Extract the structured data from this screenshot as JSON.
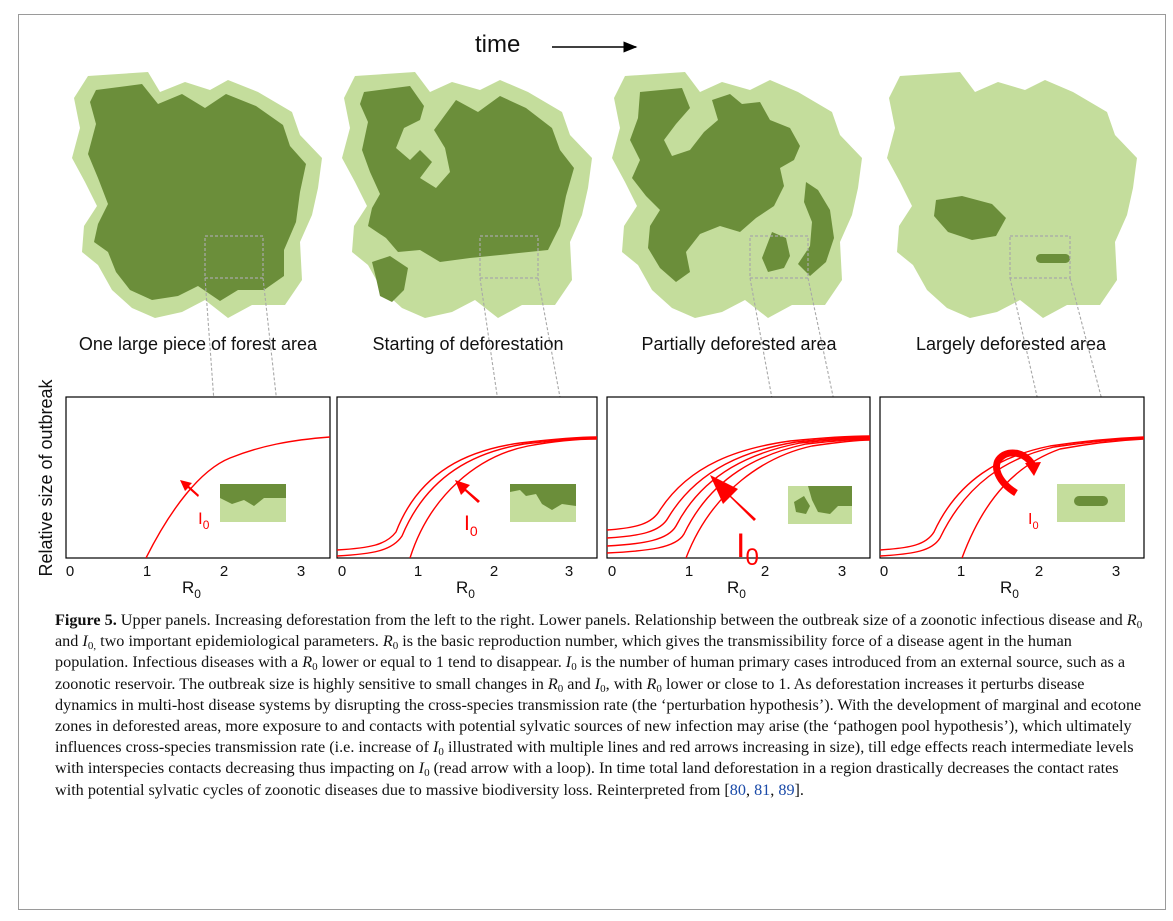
{
  "figure": {
    "time_label": "time",
    "panels": [
      {
        "title": "One large piece of forest area"
      },
      {
        "title": "Starting of deforestation"
      },
      {
        "title": "Partially deforested area"
      },
      {
        "title": "Largely deforested area"
      }
    ],
    "y_axis_label": "Relative size of outbreak",
    "x_axis_label": "R",
    "x_axis_subscript": "0",
    "x_ticks": [
      "0",
      "1",
      "2",
      "3"
    ],
    "arrow_label": "I",
    "arrow_label_subscript": "0",
    "colors": {
      "forest_dark": "#6b8e3a",
      "forest_light": "#c4dd9c",
      "curve": "#ff0000",
      "zoom_box": "#a8a8a8"
    }
  },
  "caption": {
    "figure_label": "Figure 5.",
    "segments": [
      " Upper panels. Increasing deforestation from the left to the right. Lower panels. Relationship between the outbreak size of a zoonotic infectious disease and ",
      " and ",
      " two important epidemiological parameters. ",
      " is the basic reproduction number, which gives the transmissibility force of a disease agent in the human population. Infectious diseases with a ",
      " lower or equal to 1 tend to disappear. ",
      " is the number of human primary cases introduced from an external source, such as a zoonotic reservoir. The outbreak size is highly sensitive to small changes in ",
      " and ",
      ", with ",
      " lower or close to 1. As deforestation increases it perturbs disease dynamics in multi-host disease systems by disrupting the cross-species transmission rate (the ‘perturbation hypothesis’). With the development of marginal and ecotone zones in deforested areas, more exposure to and contacts with potential sylvatic sources of new infection may arise (the ‘pathogen pool hypothesis’), which ultimately influences cross-species transmission rate (i.e. increase of ",
      " illustrated with multiple lines and red arrows increasing in size), till edge effects reach intermediate levels with interspecies contacts decreasing thus impacting on ",
      " (read arrow with a loop). In time total land deforestation in a region drastically decreases the contact rates with potential sylvatic cycles of zoonotic diseases due to massive biodiversity loss. Reinterpreted from [",
      "]."
    ],
    "refs": [
      "80",
      "81",
      "89"
    ],
    "ref_separator": ", "
  }
}
